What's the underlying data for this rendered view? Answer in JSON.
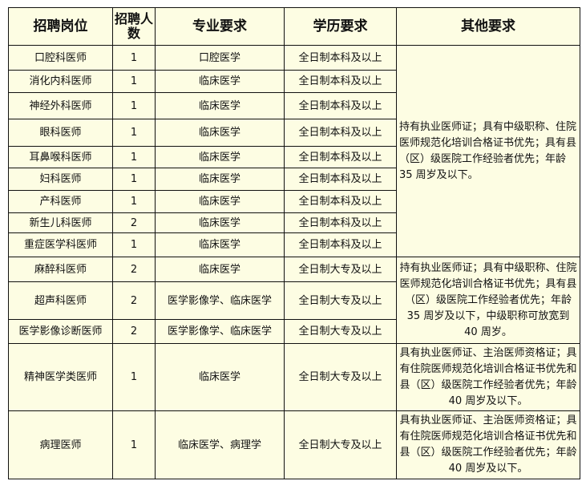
{
  "headers": [
    "招聘岗位",
    "招聘人数",
    "专业要求",
    "学历要求",
    "其他要求"
  ],
  "rows": [
    {
      "post": "口腔科医师",
      "count": "1",
      "major": "口腔医学",
      "edu": "全日制本科及以上"
    },
    {
      "post": "消化内科医师",
      "count": "1",
      "major": "临床医学",
      "edu": "全日制本科及以上"
    },
    {
      "post": "神经外科医师",
      "count": "1",
      "major": "临床医学",
      "edu": "全日制本科及以上"
    },
    {
      "post": "眼科医师",
      "count": "1",
      "major": "临床医学",
      "edu": "全日制本科及以上"
    },
    {
      "post": "耳鼻喉科医师",
      "count": "1",
      "major": "临床医学",
      "edu": "全日制本科及以上"
    },
    {
      "post": "妇科医师",
      "count": "1",
      "major": "临床医学",
      "edu": "全日制本科及以上"
    },
    {
      "post": "产科医师",
      "count": "1",
      "major": "临床医学",
      "edu": "全日制本科及以上"
    },
    {
      "post": "新生儿科医师",
      "count": "2",
      "major": "临床医学",
      "edu": "全日制本科及以上"
    },
    {
      "post": "重症医学科医师",
      "count": "1",
      "major": "临床医学",
      "edu": "全日制本科及以上"
    },
    {
      "post": "麻醉科医师",
      "count": "2",
      "major": "临床医学",
      "edu": "全日制大专及以上"
    },
    {
      "post": "超声科医师",
      "count": "2",
      "major": "医学影像学、临床医学",
      "edu": "全日制大专及以上"
    },
    {
      "post": "医学影像诊断医师",
      "count": "2",
      "major": "医学影像学、临床医学",
      "edu": "全日制大专及以上"
    },
    {
      "post": "精神医学类医师",
      "count": "1",
      "major": "临床医学",
      "edu": "全日制大专及以上"
    },
    {
      "post": "病理医师",
      "count": "1",
      "major": "临床医学、病理学",
      "edu": "全日制大专及以上"
    }
  ],
  "other": [
    "持有执业医师证；具有中级职称、住院医师规范化培训合格证书优先；具有县（区）级医院工作经验者优先；年龄 35 周岁及以下。",
    "持有执业医师证；具有中级职称、住院医师规范化培训合格证书优先；具有县（区）级医院工作经验者优先；年龄 35 周岁及以下，中级职称可放宽到 40 周岁。",
    "具有执业医师证、主治医师资格证；具有住院医师规范化培训合格证书优先和县（区）级医院工作经验者优先；年龄 40 周岁及以下。",
    "具有执业医师证、主治医师资格证；具有住院医师规范化培训合格证书优先和县（区）级医院工作经验者优先；年龄 40 周岁及以下。"
  ]
}
